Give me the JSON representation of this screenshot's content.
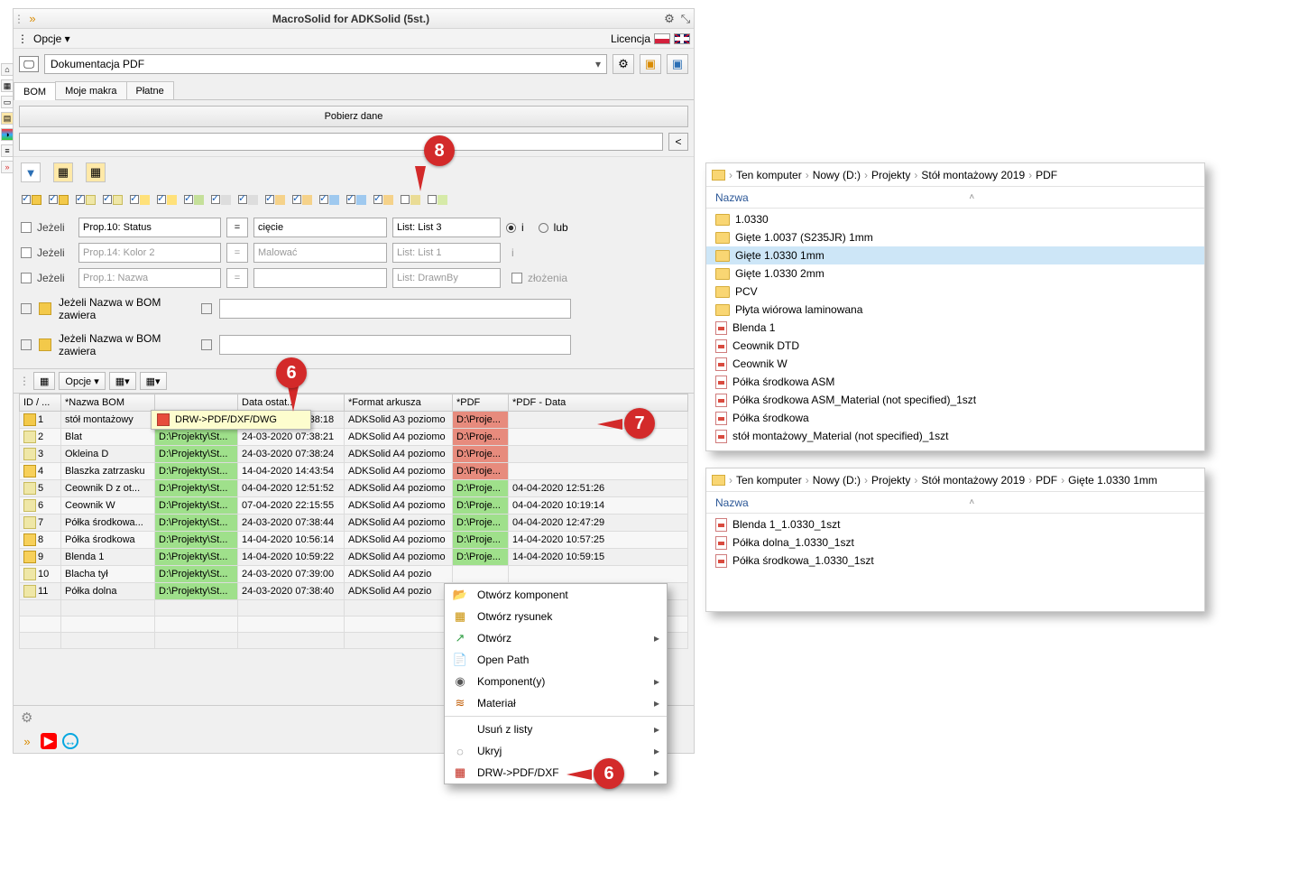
{
  "title": "MacroSolid for ADKSolid (5st.)",
  "menu": {
    "opcje": "Opcje ▾",
    "licencja": "Licencja"
  },
  "mainCombo": "Dokumentacja PDF",
  "tabs": {
    "bom": "BOM",
    "moje": "Moje makra",
    "platne": "Płatne"
  },
  "pobierz": "Pobierz dane",
  "cond": {
    "jezeli": "Jeżeli",
    "r1": {
      "prop": "Prop.10: Status",
      "op": "=",
      "val": "cięcie",
      "list": "List: List 3",
      "i": "i",
      "lub": "lub"
    },
    "r2": {
      "prop": "Prop.14: Kolor 2",
      "op": "=",
      "val": "Malować",
      "list": "List: List 1",
      "i": "i"
    },
    "r3": {
      "prop": "Prop.1: Nazwa",
      "op": "=",
      "val": "",
      "list": "List: DrawnBy",
      "zlozenia": "złożenia"
    },
    "nazwa": "Jeżeli Nazwa w BOM zawiera"
  },
  "gridToolbar": {
    "opcje": "Opcje ▾"
  },
  "drwPopup": "DRW->PDF/DXF/DWG",
  "cols": {
    "id": "ID / ...",
    "nazwa": "*Nazwa BOM",
    "path": "",
    "data1": "Data ostat...",
    "format": "*Format arkusza",
    "pdf": "*PDF",
    "pdfdata": "*PDF - Data"
  },
  "rows": [
    {
      "n": "1",
      "ic": "asm",
      "name": "stół montażowy",
      "path": "D:\\Projekty\\St...",
      "d1": "24-03-2020 07:38:18",
      "fmt": "ADKSolid A3 poziomo",
      "pdf": "D:\\Proje...",
      "pdfcls": "c-red",
      "pd": ""
    },
    {
      "n": "2",
      "ic": "part",
      "name": "Blat",
      "path": "D:\\Projekty\\St...",
      "d1": "24-03-2020 07:38:21",
      "fmt": "ADKSolid A4 poziomo",
      "pdf": "D:\\Proje...",
      "pdfcls": "c-red",
      "pd": ""
    },
    {
      "n": "3",
      "ic": "part",
      "name": "Okleina D",
      "path": "D:\\Projekty\\St...",
      "d1": "24-03-2020 07:38:24",
      "fmt": "ADKSolid A4 poziomo",
      "pdf": "D:\\Proje...",
      "pdfcls": "c-red",
      "pd": ""
    },
    {
      "n": "4",
      "ic": "det",
      "name": "Blaszka zatrzasku",
      "path": "D:\\Projekty\\St...",
      "d1": "14-04-2020 14:43:54",
      "fmt": "ADKSolid A4 poziomo",
      "pdf": "D:\\Proje...",
      "pdfcls": "c-red",
      "pd": ""
    },
    {
      "n": "5",
      "ic": "part",
      "name": "Ceownik D z ot...",
      "path": "D:\\Projekty\\St...",
      "d1": "04-04-2020 12:51:52",
      "fmt": "ADKSolid A4 poziomo",
      "pdf": "D:\\Proje...",
      "pdfcls": "c-green",
      "pd": "04-04-2020 12:51:26"
    },
    {
      "n": "6",
      "ic": "part",
      "name": "Ceownik W",
      "path": "D:\\Projekty\\St...",
      "d1": "07-04-2020 22:15:55",
      "fmt": "ADKSolid A4 poziomo",
      "pdf": "D:\\Proje...",
      "pdfcls": "c-green",
      "pd": "04-04-2020 10:19:14"
    },
    {
      "n": "7",
      "ic": "part",
      "name": "Półka środkowa...",
      "path": "D:\\Projekty\\St...",
      "d1": "24-03-2020 07:38:44",
      "fmt": "ADKSolid A4 poziomo",
      "pdf": "D:\\Proje...",
      "pdfcls": "c-green",
      "pd": "04-04-2020 12:47:29"
    },
    {
      "n": "8",
      "ic": "det",
      "name": "Półka środkowa",
      "path": "D:\\Projekty\\St...",
      "d1": "14-04-2020 10:56:14",
      "fmt": "ADKSolid A4 poziomo",
      "pdf": "D:\\Proje...",
      "pdfcls": "c-green",
      "pd": "14-04-2020 10:57:25"
    },
    {
      "n": "9",
      "ic": "det",
      "name": "Blenda 1",
      "path": "D:\\Projekty\\St...",
      "d1": "14-04-2020 10:59:22",
      "fmt": "ADKSolid A4 poziomo",
      "pdf": "D:\\Proje...",
      "pdfcls": "c-green",
      "pd": "14-04-2020 10:59:15"
    },
    {
      "n": "10",
      "ic": "part",
      "name": "Blacha tył",
      "path": "D:\\Projekty\\St...",
      "d1": "24-03-2020 07:39:00",
      "fmt": "ADKSolid A4 pozio",
      "pdf": "",
      "pdfcls": "",
      "pd": ""
    },
    {
      "n": "11",
      "ic": "part",
      "name": "Półka dolna",
      "path": "D:\\Projekty\\St...",
      "d1": "24-03-2020 07:38:40",
      "fmt": "ADKSolid A4 pozio",
      "pdf": "",
      "pdfcls": "",
      "pd": ""
    }
  ],
  "ctx": {
    "items": [
      {
        "ico": "📂",
        "label": "Otwórz komponent",
        "sub": false,
        "color": "#d9a400"
      },
      {
        "ico": "▦",
        "label": "Otwórz rysunek",
        "sub": false,
        "color": "#c98f00"
      },
      {
        "ico": "↗",
        "label": "Otwórz",
        "sub": true,
        "color": "#2f9e44"
      },
      {
        "ico": "📄",
        "label": "Open Path",
        "sub": false,
        "color": "#5a7fa8"
      },
      {
        "ico": "◉",
        "label": "Komponent(y)",
        "sub": true,
        "color": "#555"
      },
      {
        "ico": "≋",
        "label": "Materiał",
        "sub": true,
        "color": "#c05a00"
      },
      {
        "sep": true
      },
      {
        "ico": "",
        "label": "Usuń z listy",
        "sub": true,
        "color": "#555"
      },
      {
        "ico": "◌",
        "label": "Ukryj",
        "sub": true,
        "color": "#555"
      },
      {
        "ico": "▦",
        "label": "DRW->PDF/DXF",
        "sub": true,
        "color": "#c02418"
      }
    ]
  },
  "callouts": {
    "c6": "6",
    "c7": "7",
    "c8": "8"
  },
  "explorer1": {
    "breadcrumb": [
      "Ten komputer",
      "Nowy (D:)",
      "Projekty",
      "Stół montażowy 2019",
      "PDF"
    ],
    "nazwa": "Nazwa",
    "items": [
      {
        "t": "folder",
        "n": "1.0330"
      },
      {
        "t": "folder",
        "n": "Gięte 1.0037 (S235JR) 1mm"
      },
      {
        "t": "folder",
        "n": "Gięte 1.0330 1mm",
        "sel": true
      },
      {
        "t": "folder",
        "n": "Gięte 1.0330 2mm"
      },
      {
        "t": "folder",
        "n": "PCV"
      },
      {
        "t": "folder",
        "n": "Płyta wiórowa laminowana"
      },
      {
        "t": "pdf",
        "n": "Blenda 1"
      },
      {
        "t": "pdf",
        "n": "Ceownik DTD"
      },
      {
        "t": "pdf",
        "n": "Ceownik W"
      },
      {
        "t": "pdf",
        "n": "Półka środkowa ASM"
      },
      {
        "t": "pdf",
        "n": "Półka środkowa ASM_Material (not specified)_1szt"
      },
      {
        "t": "pdf",
        "n": "Półka środkowa"
      },
      {
        "t": "pdf",
        "n": "stół montażowy_Material (not specified)_1szt"
      }
    ]
  },
  "explorer2": {
    "breadcrumb": [
      "Ten komputer",
      "Nowy (D:)",
      "Projekty",
      "Stół montażowy 2019",
      "PDF",
      "Gięte 1.0330 1mm"
    ],
    "nazwa": "Nazwa",
    "items": [
      {
        "t": "pdf",
        "n": "Blenda 1_1.0330_1szt"
      },
      {
        "t": "pdf",
        "n": "Półka dolna_1.0330_1szt"
      },
      {
        "t": "pdf",
        "n": "Półka środkowa_1.0330_1szt"
      }
    ]
  }
}
